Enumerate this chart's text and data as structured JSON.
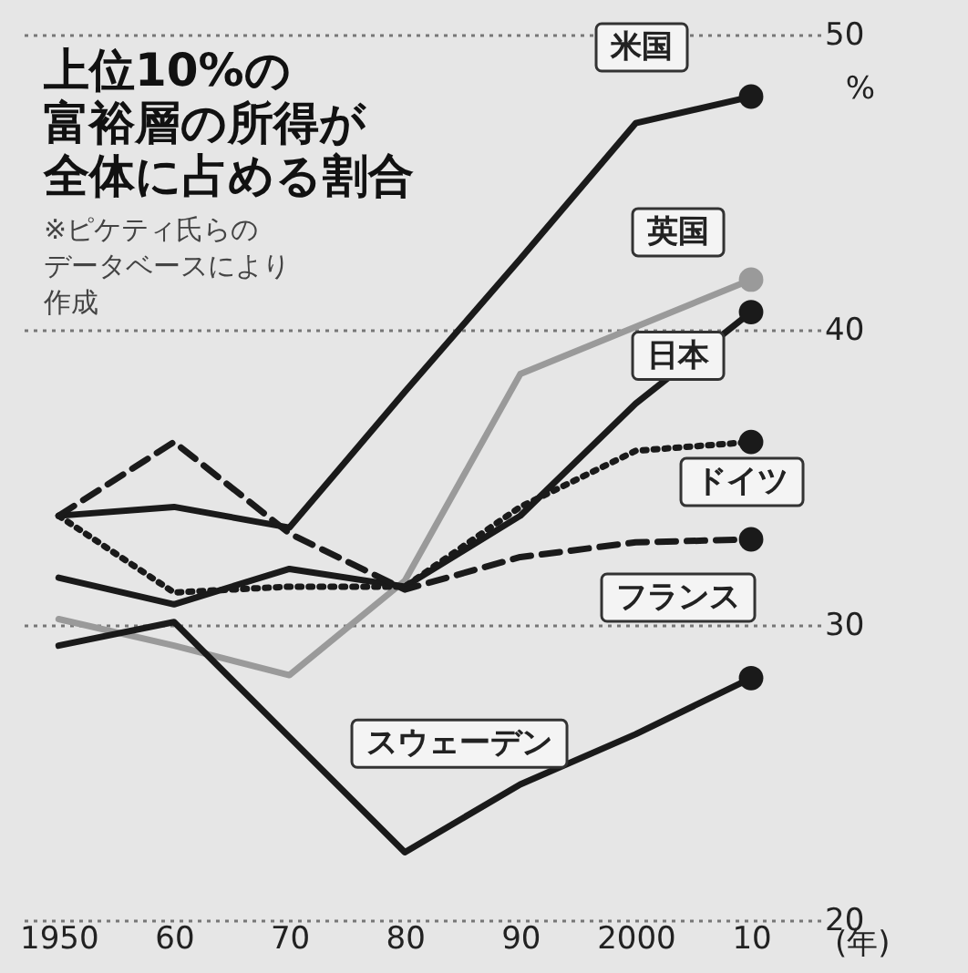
{
  "chart_data": {
    "type": "line",
    "title": "上位10%の富裕層の所得が全体に占める割合",
    "annotations": [
      "※ピケティ氏らのデータベースにより作成"
    ],
    "xlabel": "(年)",
    "ylabel": "%",
    "x": [
      1950,
      1960,
      1970,
      1980,
      1990,
      2000,
      2010
    ],
    "xlim": [
      1946.5,
      2016
    ],
    "xticks": [
      1950,
      {
        "value": 1960,
        "label": "60"
      },
      {
        "value": 1970,
        "label": "70"
      },
      {
        "value": 1980,
        "label": "80"
      },
      {
        "value": 1990,
        "label": "90"
      },
      2000,
      {
        "value": 2010,
        "label": "10"
      }
    ],
    "ylim": [
      20,
      50
    ],
    "yticks": [
      20,
      30,
      40,
      50
    ],
    "grid": "y",
    "legend": false,
    "series": [
      {
        "name": "米国",
        "color": "#1a1a1a",
        "line_style": "solid",
        "values": [
          33.7,
          34.0,
          33.3,
          37.9,
          42.4,
          47.0,
          47.9
        ]
      },
      {
        "name": "英国",
        "color": "#9a9a9a",
        "line_style": "solid",
        "values": [
          30.2,
          29.3,
          28.3,
          31.5,
          38.5,
          40.1,
          41.7
        ]
      },
      {
        "name": "日本",
        "color": "#1a1a1a",
        "line_style": "solid",
        "values": [
          31.6,
          30.7,
          31.9,
          31.3,
          33.7,
          37.5,
          40.6
        ]
      },
      {
        "name": "ドイツ",
        "color": "#1a1a1a",
        "line_style": "dotted",
        "values": [
          33.7,
          31.1,
          31.3,
          31.3,
          34.0,
          35.9,
          36.2
        ]
      },
      {
        "name": "フランス",
        "color": "#1a1a1a",
        "line_style": "dashed",
        "values": [
          33.7,
          36.2,
          33.1,
          31.2,
          32.3,
          32.8,
          32.9
        ]
      },
      {
        "name": "スウェーデン",
        "color": "#1a1a1a",
        "line_style": "solid",
        "values": [
          29.3,
          30.1,
          26.2,
          22.3,
          24.6,
          26.3,
          28.2
        ]
      }
    ]
  }
}
